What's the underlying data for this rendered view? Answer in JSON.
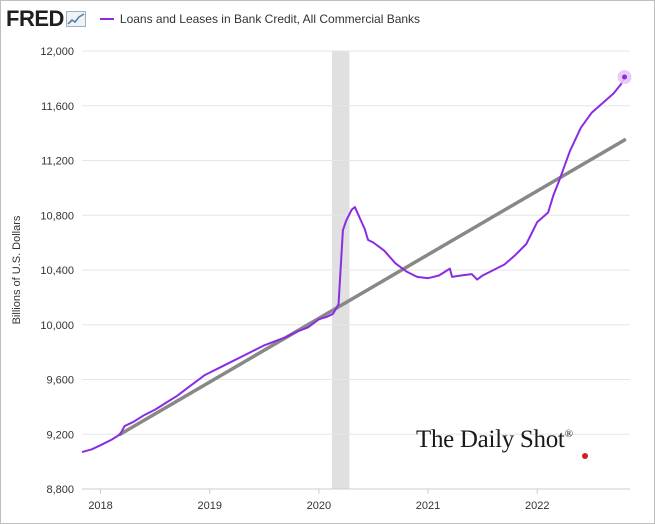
{
  "header": {
    "logo_text": "FRED",
    "logo_icon": "fred-chart-icon",
    "legend_label": "Loans and Leases in Bank Credit, All Commercial Banks"
  },
  "watermark": {
    "text": "The Daily Shot",
    "mark": "®"
  },
  "colors": {
    "series": "#8b2be2",
    "trend": "#888888",
    "recession": "#e0e0e0",
    "grid": "#e6e6e6",
    "highlight": "#e7c6f5"
  },
  "chart_data": {
    "type": "line",
    "title": "",
    "xlabel": "",
    "ylabel": "Billions of U.S. Dollars",
    "grid": true,
    "legend_position": "top-left",
    "xlim": [
      2017.83,
      2022.85
    ],
    "ylim": [
      8800,
      12000
    ],
    "x_ticks": [
      2018,
      2019,
      2020,
      2021,
      2022
    ],
    "x_tick_labels": [
      "2018",
      "2019",
      "2020",
      "2021",
      "2022"
    ],
    "y_ticks": [
      8800,
      9200,
      9600,
      10000,
      10400,
      10800,
      11200,
      11600,
      12000
    ],
    "y_tick_labels": [
      "8,800",
      "9,200",
      "9,600",
      "10,000",
      "10,400",
      "10,800",
      "11,200",
      "11,600",
      "12,000"
    ],
    "shaded_periods": [
      [
        2020.12,
        2020.28
      ]
    ],
    "series": [
      {
        "name": "Loans and Leases in Bank Credit, All Commercial Banks",
        "style": "line",
        "x": [
          2017.83,
          2017.92,
          2018.0,
          2018.1,
          2018.18,
          2018.22,
          2018.3,
          2018.4,
          2018.5,
          2018.6,
          2018.7,
          2018.8,
          2018.9,
          2018.95,
          2019.0,
          2019.1,
          2019.2,
          2019.3,
          2019.4,
          2019.5,
          2019.6,
          2019.7,
          2019.8,
          2019.9,
          2019.95,
          2020.0,
          2020.08,
          2020.13,
          2020.18,
          2020.22,
          2020.25,
          2020.3,
          2020.33,
          2020.38,
          2020.42,
          2020.45,
          2020.5,
          2020.55,
          2020.6,
          2020.7,
          2020.8,
          2020.9,
          2021.0,
          2021.1,
          2021.2,
          2021.22,
          2021.3,
          2021.4,
          2021.45,
          2021.5,
          2021.6,
          2021.7,
          2021.8,
          2021.9,
          2022.0,
          2022.1,
          2022.15,
          2022.2,
          2022.3,
          2022.4,
          2022.5,
          2022.6,
          2022.7,
          2022.77,
          2022.8
        ],
        "values": [
          9070,
          9090,
          9120,
          9160,
          9200,
          9260,
          9290,
          9340,
          9380,
          9430,
          9480,
          9540,
          9600,
          9630,
          9650,
          9690,
          9730,
          9770,
          9810,
          9850,
          9880,
          9910,
          9950,
          9980,
          10010,
          10040,
          10060,
          10080,
          10150,
          10690,
          10760,
          10840,
          10860,
          10770,
          10700,
          10620,
          10600,
          10570,
          10540,
          10450,
          10390,
          10350,
          10340,
          10360,
          10410,
          10350,
          10360,
          10370,
          10330,
          10360,
          10400,
          10440,
          10510,
          10590,
          10750,
          10820,
          10950,
          11050,
          11270,
          11440,
          11550,
          11620,
          11690,
          11760,
          11810
        ]
      },
      {
        "name": "",
        "style": "trend",
        "x": [
          2018.18,
          2022.8
        ],
        "values": [
          9200,
          11350
        ]
      }
    ]
  }
}
